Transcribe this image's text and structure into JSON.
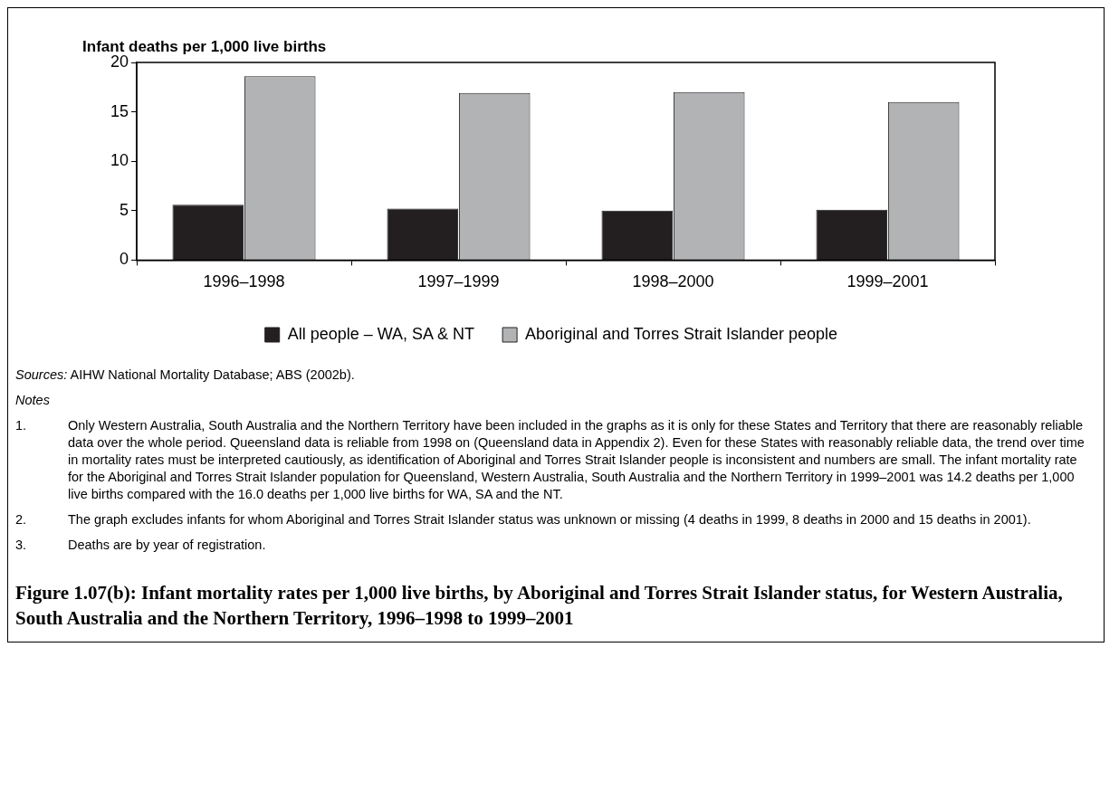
{
  "chart_data": {
    "type": "bar",
    "title": "Figure 1.07(b): Infant mortality rates per 1,000 live births, by Aboriginal and Torres Strait Islander status, for Western Australia, South Australia and the Northern Territory, 1996–1998 to 1999–2001",
    "ylabel": "Infant deaths per 1,000 live births",
    "categories": [
      "1996–1998",
      "1997–1999",
      "1998–2000",
      "1999–2001"
    ],
    "series": [
      {
        "name": "All people – WA, SA & NT",
        "color": "#231f20",
        "values": [
          5.6,
          5.2,
          5.0,
          5.1
        ]
      },
      {
        "name": "Aboriginal and Torres Strait Islander people",
        "color": "#b2b3b5",
        "values": [
          18.6,
          16.9,
          17.0,
          16.0
        ]
      }
    ],
    "ylim": [
      0,
      20
    ],
    "yticks": [
      0,
      5,
      10,
      15,
      20
    ],
    "grid": false,
    "legend": "bottom",
    "annotations": [
      "Sources: AIHW National Mortality Database; ABS (2002b).",
      "Notes",
      "1. Only Western Australia, South Australia and the Northern Territory have been included in the graphs as it is only for these States and Territory that there are reasonably reliable data over the whole period. Queensland data is reliable from 1998 on (Queensland data in Appendix 2). Even for these States with reasonably reliable data, the trend over time in mortality rates must be interpreted cautiously, as identification of Aboriginal and Torres Strait Islander people is inconsistent and numbers are small. The infant mortality rate for the Aboriginal and Torres Strait Islander population for Queensland, Western Australia, South Australia and the Northern Territory in 1999–2001 was 14.2 deaths per 1,000 live births compared with the 16.0 deaths per 1,000 live births for WA, SA and the NT.",
      "2. The graph excludes infants for whom Aboriginal and Torres Strait Islander status was unknown or missing (4 deaths in 1999, 8 deaths in 2000 and 15 deaths in 2001).",
      "3. Deaths are by year of registration."
    ]
  }
}
